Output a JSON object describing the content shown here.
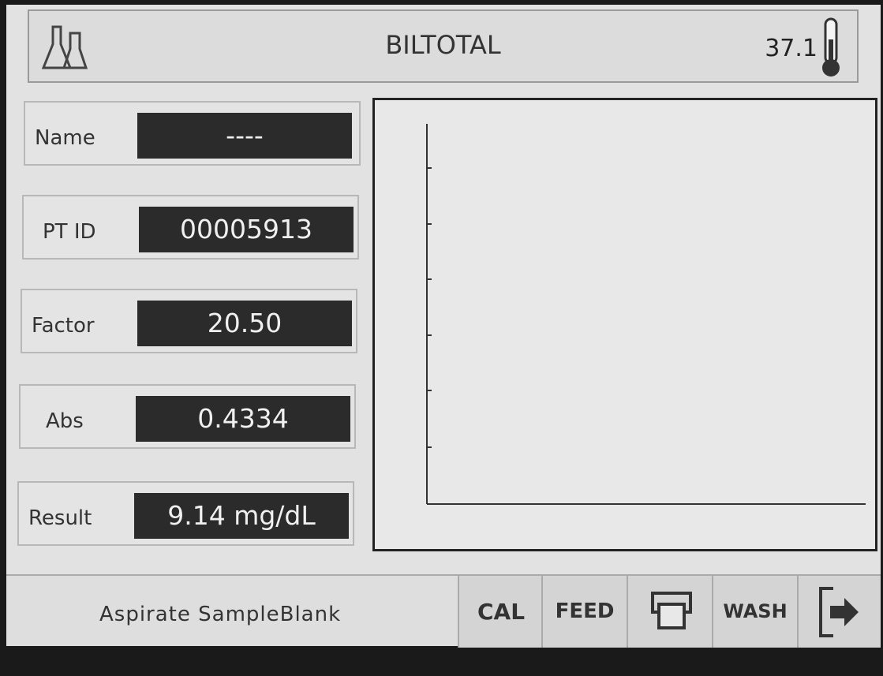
{
  "header": {
    "title": "BILTOTAL",
    "temperature": "37.1"
  },
  "fields": [
    {
      "label": "Name",
      "value": "----"
    },
    {
      "label": "PT ID",
      "value": "00005913"
    },
    {
      "label": "Factor",
      "value": "20.50"
    },
    {
      "label": "Abs",
      "value": "0.4334"
    },
    {
      "label": "Result",
      "value": "9.14 mg/dL"
    }
  ],
  "status": "Aspirate SampleBlank",
  "buttons": [
    "CAL",
    "FEED",
    "WASH"
  ]
}
